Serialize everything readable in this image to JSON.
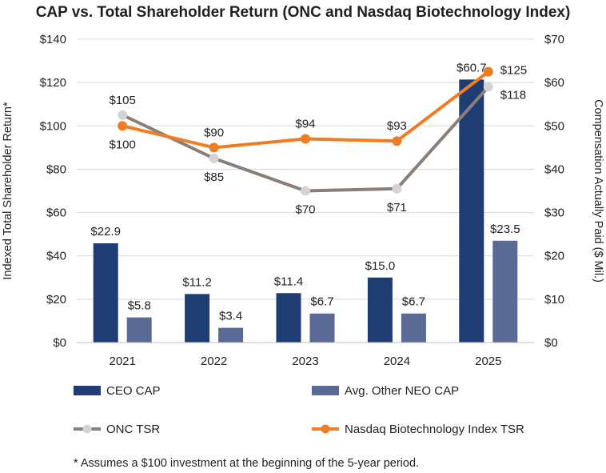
{
  "chart_data": {
    "type": "bar",
    "title": "CAP vs. Total Shareholder Return (ONC and Nasdaq Biotechnology Index)",
    "categories": [
      "2021",
      "2022",
      "2023",
      "2024",
      "2025"
    ],
    "left_axis": {
      "label": "Indexed Total Shareholder Return*",
      "ylim": [
        0,
        140
      ],
      "ticks": [
        0,
        20,
        40,
        60,
        80,
        100,
        120,
        140
      ],
      "tick_labels": [
        "$0",
        "$20",
        "$40",
        "$60",
        "$80",
        "$100",
        "$120",
        "$140"
      ]
    },
    "right_axis": {
      "label": "Compensation Actually Paid ($ Mil.)",
      "ylim": [
        0,
        70
      ],
      "ticks": [
        0,
        10,
        20,
        30,
        40,
        50,
        60,
        70
      ],
      "tick_labels": [
        "$0",
        "$10",
        "$20",
        "$30",
        "$40",
        "$50",
        "$60",
        "$70"
      ]
    },
    "series": [
      {
        "name": "CEO CAP",
        "kind": "bar",
        "axis": "right",
        "color": "#1f3d73",
        "values": [
          22.9,
          11.2,
          11.4,
          15.0,
          60.7
        ],
        "labels": [
          "$22.9",
          "$11.2",
          "$11.4",
          "$15.0",
          "$60.7"
        ]
      },
      {
        "name": "Avg. Other NEO CAP",
        "kind": "bar",
        "axis": "right",
        "color": "#5b6a94",
        "values": [
          5.8,
          3.4,
          6.7,
          6.7,
          23.5
        ],
        "labels": [
          "$5.8",
          "$3.4",
          "$6.7",
          "$6.7",
          "$23.5"
        ]
      },
      {
        "name": "ONC TSR",
        "kind": "line",
        "axis": "left",
        "color": "#8a7f78",
        "marker_color": "#d4d4d4",
        "values": [
          105,
          85,
          70,
          71,
          118
        ],
        "labels": [
          "$105",
          "$85",
          "$70",
          "$71",
          "$118"
        ]
      },
      {
        "name": "Nasdaq Biotechnology Index TSR",
        "kind": "line",
        "axis": "left",
        "color": "#ee7d26",
        "marker_color": "#ee7d26",
        "values": [
          100,
          90,
          94,
          93,
          125
        ],
        "labels": [
          "$100",
          "$90",
          "$94",
          "$93",
          "$125"
        ]
      }
    ],
    "footnote": "* Assumes a $100 investment at the beginning of the 5-year period.",
    "grid": true
  }
}
